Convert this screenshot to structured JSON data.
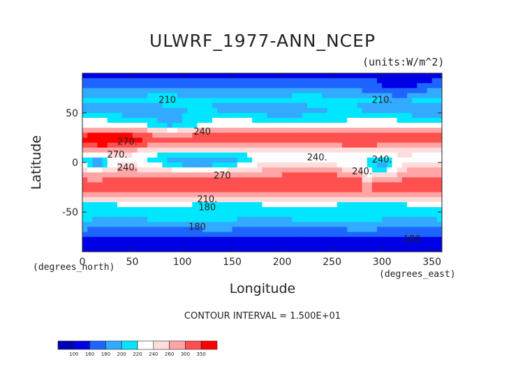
{
  "chart_data": {
    "type": "heatmap",
    "title": "ULWRF_1977-ANN_NCEP",
    "units": "(units:W/m^2)",
    "xlabel": "Longitude",
    "ylabel": "Latitude",
    "x_units_note": "(degrees_east)",
    "y_units_note": "(degrees_north)",
    "xlim": [
      0,
      360
    ],
    "ylim": [
      -90,
      90
    ],
    "x_ticks": [
      0,
      50,
      100,
      150,
      200,
      250,
      300,
      350
    ],
    "y_ticks": [
      50,
      0,
      -50
    ],
    "contour_note": "CONTOUR INTERVAL = 1.500E+01",
    "contour_labels": [
      "210",
      "210.",
      "270.",
      "240",
      "240.",
      "240.",
      "270",
      "240.",
      "210.",
      "180",
      "180",
      "240.",
      "270.",
      "180"
    ],
    "colorbar": {
      "levels": [
        "100",
        "160",
        "180",
        "200",
        "220",
        "240",
        "260",
        "300",
        "350"
      ],
      "colors": [
        "#0000b4",
        "#0000e6",
        "#1e64ff",
        "#32aaff",
        "#00e6ff",
        "#ffffff",
        "#ffdcdc",
        "#ffa5a5",
        "#ff5050",
        "#ff0000"
      ]
    }
  }
}
